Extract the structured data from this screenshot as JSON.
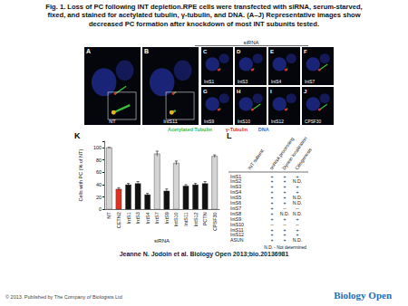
{
  "caption": "Fig. 1. Loss of PC following INT depletion.RPE cells were transfected with siRNA, serum-starved, fixed, and stained for acetylated tubulin, γ-tubulin, and DNA. (A–J) Representative images show decreased PC formation after knockdown of most INT subunits tested.",
  "images": {
    "heading": "siRNA",
    "panels": [
      {
        "letter": "A",
        "label": "NT"
      },
      {
        "letter": "B",
        "label": "IntS11"
      },
      {
        "letter": "C",
        "label": "IntS1"
      },
      {
        "letter": "D",
        "label": "IntS3"
      },
      {
        "letter": "E",
        "label": "IntS4"
      },
      {
        "letter": "F",
        "label": "IntS7"
      },
      {
        "letter": "G",
        "label": "IntS9"
      },
      {
        "letter": "H",
        "label": "IntS10"
      },
      {
        "letter": "I",
        "label": "IntS12"
      },
      {
        "letter": "J",
        "label": "CPSF30"
      }
    ],
    "stain_legend": [
      {
        "text": "Acetylated Tubulin",
        "color": "#3dbb3d"
      },
      {
        "text": "γ-Tubulin",
        "color": "#e03030"
      },
      {
        "text": "DNA",
        "color": "#4a5ee8"
      }
    ]
  },
  "panel_letters": {
    "chart": "K",
    "table": "L"
  },
  "chart_data": {
    "type": "bar",
    "categories": [
      "NT",
      "CETN2",
      "IntS1",
      "IntS3",
      "IntS4",
      "IntS7",
      "IntS9",
      "IntS10",
      "IntS11",
      "IntS12",
      "PCTN",
      "CPSF30"
    ],
    "values": [
      100,
      33,
      40,
      42,
      24,
      90,
      30,
      75,
      38,
      40,
      42,
      86
    ],
    "errors": [
      0,
      2,
      2,
      3,
      2,
      4,
      3,
      3,
      2,
      2,
      3,
      2
    ],
    "colors": [
      "#d4d4d4",
      "#e0301e",
      "#111111",
      "#111111",
      "#111111",
      "#d4d4d4",
      "#111111",
      "#d4d4d4",
      "#111111",
      "#111111",
      "#111111",
      "#d4d4d4"
    ],
    "x_label": "siRNA",
    "y_label": "Cells with PC (% of NT)",
    "ylim": [
      0,
      110
    ],
    "yticks": [
      0,
      20,
      40,
      60,
      80,
      100
    ],
    "grid": false
  },
  "table": {
    "columns": [
      "INT subunit",
      "snRNA processing",
      "Dynein localization",
      "Ciliogenesis"
    ],
    "rows": [
      [
        "IntS1",
        "+",
        "+",
        "+"
      ],
      [
        "IntS2",
        "+",
        "+",
        "N.D."
      ],
      [
        "IntS3",
        "+",
        "+",
        "+"
      ],
      [
        "IntS4",
        "+",
        "+",
        "+"
      ],
      [
        "IntS5",
        "+",
        "+",
        "N.D."
      ],
      [
        "IntS6",
        "+",
        "+",
        "N.D."
      ],
      [
        "IntS7",
        "+",
        "--",
        "--"
      ],
      [
        "IntS8",
        "+",
        "N.D.",
        "N.D."
      ],
      [
        "IntS9",
        "+",
        "+",
        "+"
      ],
      [
        "IntS10",
        "--",
        "--",
        "--"
      ],
      [
        "IntS11",
        "+",
        "+",
        "+"
      ],
      [
        "IntS12",
        "+",
        "+",
        "+"
      ],
      [
        "ASUN",
        "+",
        "+",
        "N.D."
      ]
    ],
    "note": "N.D. - Not determined"
  },
  "citation": "Jeanne N. Jodoin et al. Biology Open 2013;bio.20136981",
  "footer": {
    "copyright": "© 2013. Published by The Company of Biologists Ltd",
    "logo": "Biology Open"
  }
}
